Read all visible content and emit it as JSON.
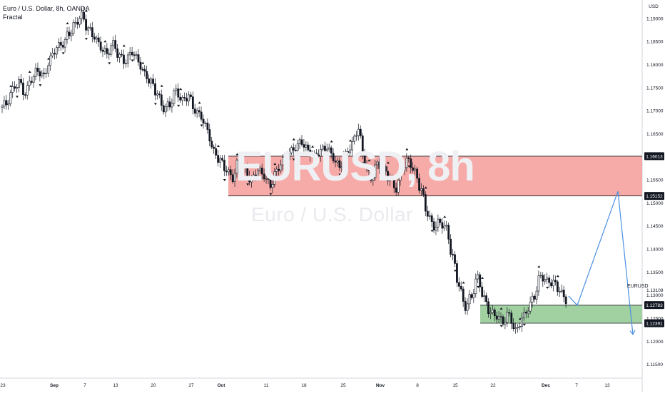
{
  "header": {
    "title": "Euro / U.S. Dollar, 8h, OANDA",
    "indicator": "Fractal"
  },
  "watermark": {
    "ticker": "EURUSD, 8h",
    "name": "Euro / U.S. Dollar"
  },
  "symbol_label": "EURUSD",
  "chart_data": {
    "type": "candlestick",
    "title": "Euro / U.S. Dollar, 8h, OANDA",
    "indicator": "Fractal",
    "y_axis": {
      "unit": "USD",
      "ticks": [
        "1.19000",
        "1.18500",
        "1.18000",
        "1.17500",
        "1.17000",
        "1.16500",
        "1.16000",
        "1.15500",
        "1.15000",
        "1.14500",
        "1.14000",
        "1.13500",
        "1.13000",
        "1.12500",
        "1.12000",
        "1.11500"
      ],
      "range": [
        1.112,
        1.194
      ]
    },
    "x_axis": {
      "ticks": [
        "23",
        "Sep",
        "7",
        "13",
        "20",
        "27",
        "Oct",
        "11",
        "18",
        "25",
        "Nov",
        "8",
        "15",
        "22",
        "Dec",
        "7",
        "13"
      ],
      "bold_ticks": [
        "Sep",
        "Oct",
        "Nov",
        "Dec"
      ]
    },
    "price_levels": [
      {
        "label": "1.16013",
        "value": 1.16013
      },
      {
        "label": "1.15152",
        "value": 1.15152
      },
      {
        "label": "1.12783",
        "value": 1.12783
      },
      {
        "label": "1.12391",
        "value": 1.12391
      },
      {
        "label": "1.13109",
        "value": 1.13109
      }
    ],
    "zones": [
      {
        "name": "resistance-zone",
        "top": 1.16013,
        "bottom": 1.15152,
        "color": "#f7a6a3"
      },
      {
        "name": "support-zone",
        "top": 1.12783,
        "bottom": 1.12391,
        "color": "#9ccd9c"
      }
    ],
    "close_series": [
      1.1715,
      1.1745,
      1.176,
      1.1735,
      1.177,
      1.179,
      1.1775,
      1.181,
      1.1835,
      1.1845,
      1.187,
      1.189,
      1.1905,
      1.1875,
      1.186,
      1.184,
      1.1825,
      1.1845,
      1.1815,
      1.1805,
      1.183,
      1.181,
      1.178,
      1.176,
      1.1735,
      1.1705,
      1.1715,
      1.1745,
      1.172,
      1.173,
      1.17,
      1.169,
      1.166,
      1.161,
      1.159,
      1.157,
      1.1555,
      1.1595,
      1.157,
      1.1545,
      1.157,
      1.156,
      1.154,
      1.157,
      1.159,
      1.1605,
      1.162,
      1.1635,
      1.1615,
      1.16,
      1.161,
      1.162,
      1.16,
      1.158,
      1.1605,
      1.1625,
      1.166,
      1.159,
      1.1555,
      1.1585,
      1.157,
      1.155,
      1.153,
      1.158,
      1.1595,
      1.1565,
      1.1525,
      1.1475,
      1.145,
      1.146,
      1.1445,
      1.138,
      1.132,
      1.1275,
      1.13,
      1.134,
      1.129,
      1.126,
      1.1255,
      1.1245,
      1.126,
      1.122,
      1.1245,
      1.127,
      1.13,
      1.1345,
      1.133,
      1.1325,
      1.131,
      1.129
    ],
    "projection": [
      1.1278,
      1.1525,
      1.1215
    ],
    "fractal_markers": "up/down triangles above and below swing highs and lows"
  }
}
